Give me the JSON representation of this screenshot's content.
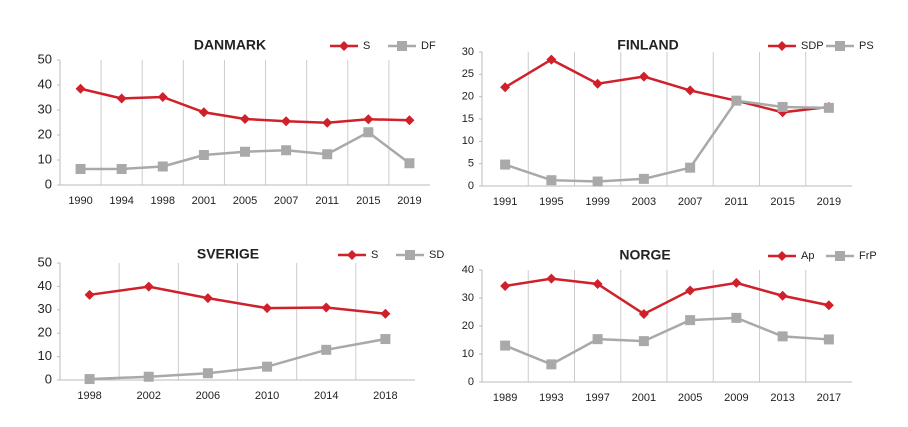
{
  "chart_data": [
    {
      "type": "line",
      "title": "DANMARK",
      "categories": [
        "1990",
        "1994",
        "1998",
        "2001",
        "2005",
        "2007",
        "2011",
        "2015",
        "2019"
      ],
      "series": [
        {
          "name": "S",
          "color": "#d0202a",
          "marker": "diamond",
          "values": [
            38.5,
            34.6,
            35.2,
            29.1,
            26.4,
            25.5,
            24.9,
            26.3,
            25.9
          ]
        },
        {
          "name": "DF",
          "color": "#a9a9a9",
          "marker": "square",
          "values": [
            6.4,
            6.4,
            7.4,
            12.0,
            13.3,
            13.9,
            12.3,
            21.1,
            8.7
          ]
        }
      ],
      "ylim": [
        0,
        50
      ],
      "yticks": [
        0,
        10,
        20,
        30,
        40,
        50
      ]
    },
    {
      "type": "line",
      "title": "FINLAND",
      "categories": [
        "1991",
        "1995",
        "1999",
        "2003",
        "2007",
        "2011",
        "2015",
        "2019"
      ],
      "series": [
        {
          "name": "SDP",
          "color": "#d0202a",
          "marker": "diamond",
          "values": [
            22.1,
            28.3,
            22.9,
            24.5,
            21.4,
            19.1,
            16.5,
            17.7
          ]
        },
        {
          "name": "PS",
          "color": "#a9a9a9",
          "marker": "square",
          "values": [
            4.8,
            1.3,
            1.0,
            1.6,
            4.1,
            19.1,
            17.7,
            17.5
          ]
        }
      ],
      "ylim": [
        0,
        30
      ],
      "yticks": [
        0,
        5,
        10,
        15,
        20,
        25,
        30
      ]
    },
    {
      "type": "line",
      "title": "SVERIGE",
      "categories": [
        "1998",
        "2002",
        "2006",
        "2010",
        "2014",
        "2018"
      ],
      "series": [
        {
          "name": "S",
          "color": "#d0202a",
          "marker": "diamond",
          "values": [
            36.4,
            39.9,
            35.0,
            30.7,
            31.0,
            28.3
          ]
        },
        {
          "name": "SD",
          "color": "#a9a9a9",
          "marker": "square",
          "values": [
            0.4,
            1.4,
            2.9,
            5.7,
            12.9,
            17.5
          ]
        }
      ],
      "ylim": [
        0,
        50
      ],
      "yticks": [
        0,
        10,
        20,
        30,
        40,
        50
      ]
    },
    {
      "type": "line",
      "title": "NORGE",
      "categories": [
        "1989",
        "1993",
        "1997",
        "2001",
        "2005",
        "2009",
        "2013",
        "2017"
      ],
      "series": [
        {
          "name": "Ap",
          "color": "#d0202a",
          "marker": "diamond",
          "values": [
            34.3,
            36.9,
            35.0,
            24.3,
            32.7,
            35.4,
            30.8,
            27.4
          ]
        },
        {
          "name": "FrP",
          "color": "#a9a9a9",
          "marker": "square",
          "values": [
            13.0,
            6.3,
            15.3,
            14.6,
            22.1,
            22.9,
            16.3,
            15.2
          ]
        }
      ],
      "ylim": [
        0,
        40
      ],
      "yticks": [
        0,
        10,
        20,
        30,
        40
      ]
    }
  ]
}
